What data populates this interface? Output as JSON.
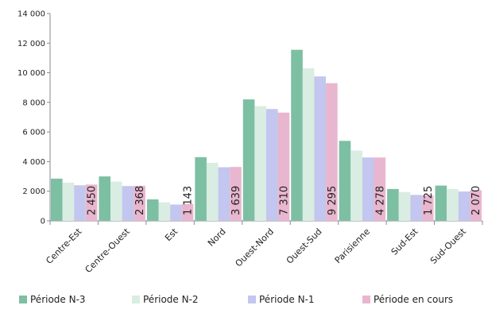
{
  "chart_data": {
    "type": "bar",
    "categories": [
      "Centre-Est",
      "Centre-Ouest",
      "Est",
      "Nord",
      "Ouest-Nord",
      "Ouest-Sud",
      "Parisienne",
      "Sud-Est",
      "Sud-Ouest"
    ],
    "series": [
      {
        "name": "Période N-3",
        "color": "#7DBFA3",
        "values": [
          2850,
          3000,
          1450,
          4300,
          8200,
          11550,
          5400,
          2150,
          2380
        ]
      },
      {
        "name": "Période N-2",
        "color": "#D9EDE3",
        "values": [
          2580,
          2650,
          1250,
          3920,
          7750,
          10300,
          4750,
          1950,
          2150
        ]
      },
      {
        "name": "Période N-1",
        "color": "#C3C6EE",
        "values": [
          2400,
          2350,
          1100,
          3620,
          7550,
          9750,
          4280,
          1750,
          1980
        ]
      },
      {
        "name": "Période en cours",
        "color": "#E9B6CF",
        "values": [
          2450,
          2368,
          1143,
          3639,
          7310,
          9295,
          4278,
          1725,
          2070
        ]
      }
    ],
    "data_labels": [
      "2 450",
      "2 368",
      "1 143",
      "3 639",
      "7 310",
      "9 295",
      "4 278",
      "1 725",
      "2 070"
    ],
    "y_ticks": [
      "0",
      "2 000",
      "4 000",
      "6 000",
      "8 000",
      "10 000",
      "12 000",
      "14 000"
    ],
    "ylim": [
      0,
      14000
    ],
    "title": "",
    "xlabel": "",
    "ylabel": "",
    "grid": false,
    "legend_position": "bottom"
  }
}
